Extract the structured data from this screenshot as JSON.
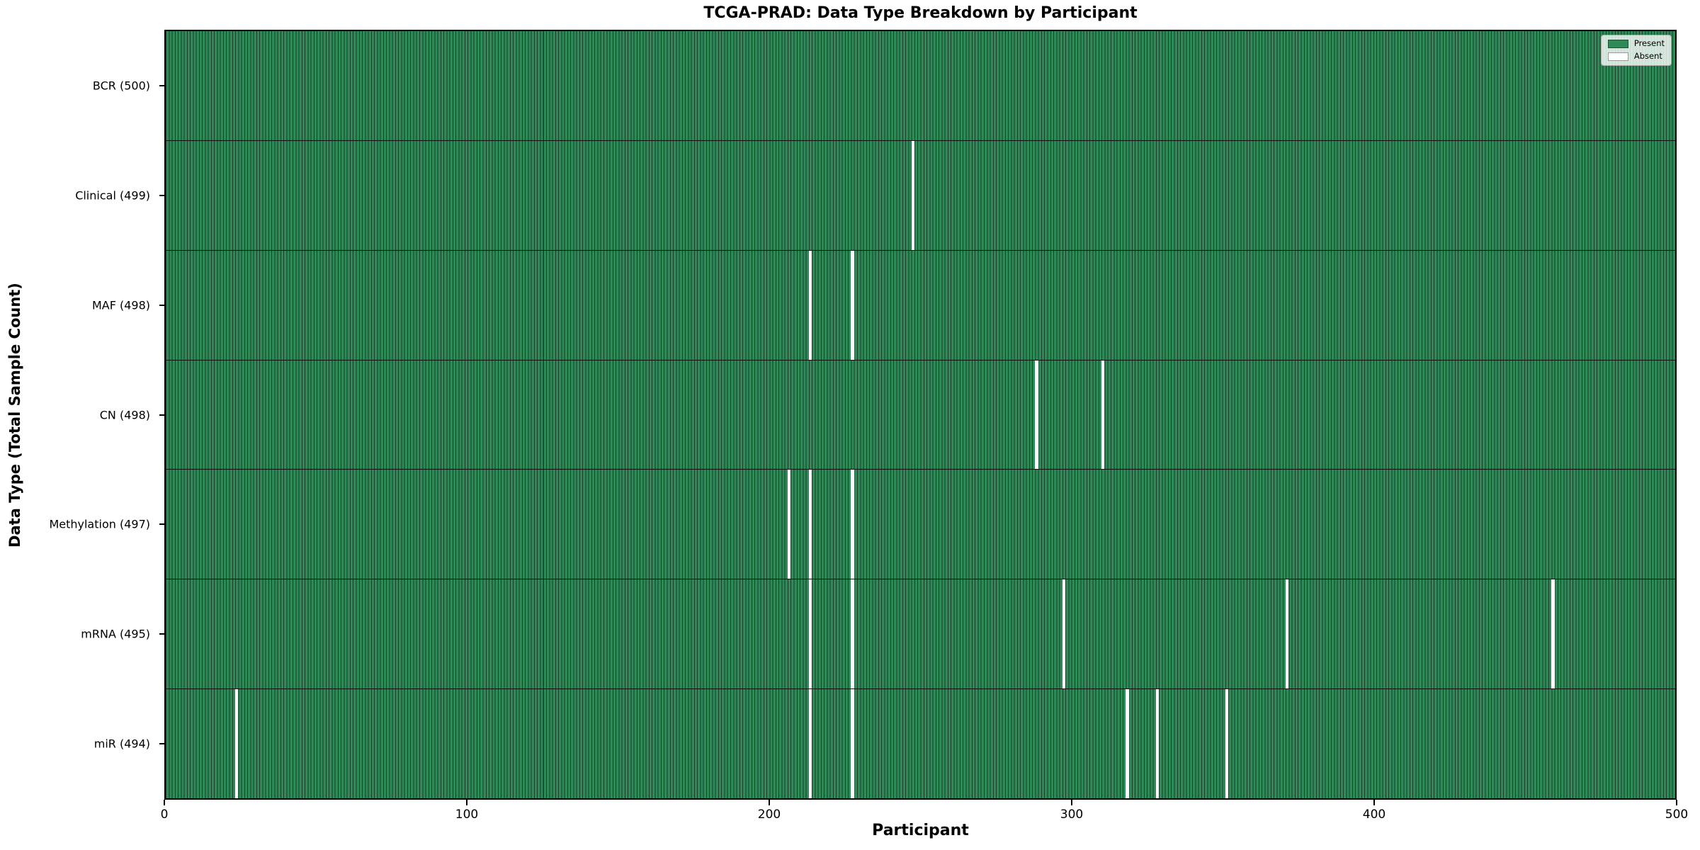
{
  "chart_data": {
    "type": "heatmap",
    "title": "TCGA-PRAD: Data Type Breakdown by Participant",
    "xlabel": "Participant",
    "ylabel": "Data Type (Total Sample Count)",
    "n_participants": 500,
    "x_range": [
      0,
      500
    ],
    "x_ticks": [
      "0",
      "100",
      "200",
      "300",
      "400",
      "500"
    ],
    "legend_position": "upper right",
    "grid": false,
    "rows": [
      {
        "name": "BCR",
        "label": "BCR (500)",
        "total": 500,
        "absent_participants": []
      },
      {
        "name": "Clinical",
        "label": "Clinical (499)",
        "total": 499,
        "absent_participants": [
          247
        ]
      },
      {
        "name": "MAF",
        "label": "MAF (498)",
        "total": 498,
        "absent_participants": [
          213,
          227
        ]
      },
      {
        "name": "CN",
        "label": "CN (498)",
        "total": 498,
        "absent_participants": [
          288,
          310
        ]
      },
      {
        "name": "Methylation",
        "label": "Methylation (497)",
        "total": 497,
        "absent_participants": [
          206,
          213,
          227
        ]
      },
      {
        "name": "mRNA",
        "label": "mRNA (495)",
        "total": 495,
        "absent_participants": [
          213,
          227,
          297,
          371,
          459
        ]
      },
      {
        "name": "miR",
        "label": "miR (494)",
        "total": 494,
        "absent_participants": [
          23,
          213,
          227,
          318,
          328,
          351
        ]
      }
    ],
    "legend": [
      {
        "label": "Present",
        "color": "#2e8b57"
      },
      {
        "label": "Absent",
        "color": "#ffffff"
      }
    ],
    "colors": {
      "present": "#2e8b57",
      "bar_edge": "#173d27",
      "absent": "#ffffff",
      "row_divider": "#0a140c",
      "plot_border": "#000000",
      "background": "#ffffff"
    }
  }
}
